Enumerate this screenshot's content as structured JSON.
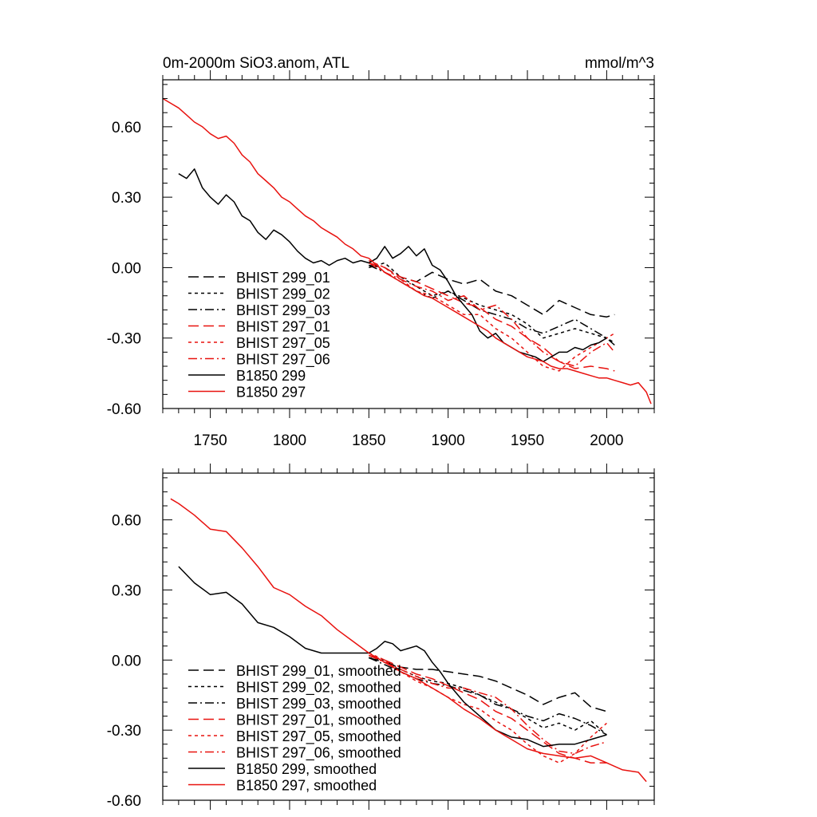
{
  "colors": {
    "black": "#000000",
    "red": "#e8120f"
  },
  "chart_data": [
    {
      "type": "line",
      "title": "0m-2000m SiO3.anom, ATL",
      "units": "mmol/m^3",
      "xlim": [
        1720,
        2030
      ],
      "ylim": [
        -0.6,
        0.8
      ],
      "xticks": [
        1750,
        1800,
        1850,
        1900,
        1950,
        2000
      ],
      "yticks": [
        -0.6,
        -0.3,
        0.0,
        0.3,
        0.6
      ],
      "ytick_labels": [
        "-0.60",
        "-0.30",
        "0.00",
        "0.30",
        "0.60"
      ],
      "xtick_labels_shown": true,
      "grid": false,
      "legend_position": "lower-left",
      "series": [
        {
          "name": "BHIST 299_01",
          "color": "black",
          "dash": "long-dash",
          "smoothed": false,
          "x": [
            1850,
            1860,
            1870,
            1880,
            1890,
            1900,
            1910,
            1920,
            1930,
            1940,
            1950,
            1960,
            1970,
            1980,
            1990,
            2000,
            2005
          ],
          "y": [
            0.01,
            0.0,
            -0.04,
            -0.06,
            -0.02,
            -0.05,
            -0.07,
            -0.05,
            -0.1,
            -0.12,
            -0.16,
            -0.2,
            -0.14,
            -0.17,
            -0.2,
            -0.21,
            -0.2
          ]
        },
        {
          "name": "BHIST 299_02",
          "color": "black",
          "dash": "short-dash",
          "smoothed": false,
          "x": [
            1850,
            1860,
            1870,
            1880,
            1890,
            1900,
            1910,
            1920,
            1930,
            1940,
            1950,
            1960,
            1970,
            1980,
            1990,
            2000,
            2005
          ],
          "y": [
            0.0,
            0.02,
            -0.04,
            -0.08,
            -0.12,
            -0.1,
            -0.13,
            -0.16,
            -0.18,
            -0.2,
            -0.24,
            -0.3,
            -0.28,
            -0.26,
            -0.28,
            -0.3,
            -0.32
          ]
        },
        {
          "name": "BHIST 299_03",
          "color": "black",
          "dash": "dash-dot",
          "smoothed": false,
          "x": [
            1850,
            1860,
            1870,
            1880,
            1890,
            1900,
            1910,
            1920,
            1930,
            1940,
            1950,
            1960,
            1970,
            1980,
            1990,
            2000,
            2005
          ],
          "y": [
            0.01,
            -0.02,
            -0.06,
            -0.1,
            -0.13,
            -0.1,
            -0.14,
            -0.18,
            -0.2,
            -0.22,
            -0.26,
            -0.28,
            -0.25,
            -0.22,
            -0.26,
            -0.3,
            -0.33
          ]
        },
        {
          "name": "BHIST 297_01",
          "color": "red",
          "dash": "long-dash",
          "smoothed": false,
          "x": [
            1850,
            1860,
            1870,
            1880,
            1890,
            1900,
            1910,
            1920,
            1930,
            1940,
            1950,
            1960,
            1970,
            1980,
            1990,
            2000,
            2005
          ],
          "y": [
            0.02,
            0.0,
            -0.04,
            -0.06,
            -0.09,
            -0.12,
            -0.15,
            -0.17,
            -0.22,
            -0.25,
            -0.3,
            -0.34,
            -0.4,
            -0.43,
            -0.42,
            -0.43,
            -0.44
          ]
        },
        {
          "name": "BHIST 297_05",
          "color": "red",
          "dash": "short-dash",
          "smoothed": false,
          "x": [
            1850,
            1860,
            1870,
            1880,
            1890,
            1900,
            1910,
            1920,
            1930,
            1940,
            1950,
            1960,
            1970,
            1980,
            1990,
            2000,
            2005
          ],
          "y": [
            0.03,
            0.0,
            -0.05,
            -0.1,
            -0.12,
            -0.16,
            -0.2,
            -0.2,
            -0.26,
            -0.3,
            -0.36,
            -0.42,
            -0.44,
            -0.38,
            -0.34,
            -0.3,
            -0.28
          ]
        },
        {
          "name": "BHIST 297_06",
          "color": "red",
          "dash": "dash-dot",
          "smoothed": false,
          "x": [
            1850,
            1860,
            1870,
            1880,
            1890,
            1900,
            1910,
            1920,
            1930,
            1940,
            1950,
            1960,
            1970,
            1980,
            1990,
            2000,
            2005
          ],
          "y": [
            0.02,
            -0.02,
            -0.05,
            -0.08,
            -0.1,
            -0.14,
            -0.12,
            -0.18,
            -0.16,
            -0.22,
            -0.3,
            -0.36,
            -0.4,
            -0.42,
            -0.36,
            -0.32,
            -0.36
          ]
        },
        {
          "name": "B1850 299",
          "color": "black",
          "dash": "solid",
          "smoothed": false,
          "x": [
            1730,
            1735,
            1740,
            1745,
            1750,
            1755,
            1760,
            1765,
            1770,
            1775,
            1780,
            1785,
            1790,
            1795,
            1800,
            1805,
            1810,
            1815,
            1820,
            1825,
            1830,
            1835,
            1840,
            1845,
            1850,
            1855,
            1860,
            1865,
            1870,
            1875,
            1880,
            1885,
            1890,
            1895,
            1900,
            1905,
            1910,
            1915,
            1920,
            1925,
            1930,
            1935,
            1940,
            1945,
            1950,
            1955,
            1960,
            1965,
            1970,
            1975,
            1980,
            1985,
            1990,
            1995,
            2000
          ],
          "y": [
            0.4,
            0.38,
            0.42,
            0.34,
            0.3,
            0.27,
            0.31,
            0.28,
            0.22,
            0.2,
            0.15,
            0.12,
            0.16,
            0.14,
            0.11,
            0.07,
            0.04,
            0.02,
            0.03,
            0.01,
            0.03,
            0.04,
            0.02,
            0.03,
            0.02,
            0.04,
            0.09,
            0.04,
            0.06,
            0.09,
            0.05,
            0.08,
            0.01,
            -0.01,
            -0.06,
            -0.12,
            -0.16,
            -0.2,
            -0.27,
            -0.3,
            -0.28,
            -0.32,
            -0.34,
            -0.36,
            -0.37,
            -0.38,
            -0.4,
            -0.38,
            -0.36,
            -0.36,
            -0.34,
            -0.35,
            -0.33,
            -0.32,
            -0.3
          ]
        },
        {
          "name": "B1850 297",
          "color": "red",
          "dash": "solid",
          "smoothed": false,
          "x": [
            1720,
            1725,
            1730,
            1735,
            1740,
            1745,
            1750,
            1755,
            1760,
            1765,
            1770,
            1775,
            1780,
            1785,
            1790,
            1795,
            1800,
            1805,
            1810,
            1815,
            1820,
            1825,
            1830,
            1835,
            1840,
            1845,
            1850,
            1855,
            1860,
            1865,
            1870,
            1875,
            1880,
            1885,
            1890,
            1895,
            1900,
            1905,
            1910,
            1915,
            1920,
            1925,
            1930,
            1935,
            1940,
            1945,
            1950,
            1955,
            1960,
            1965,
            1970,
            1975,
            1980,
            1985,
            1990,
            1995,
            2000,
            2005,
            2010,
            2015,
            2020,
            2025,
            2028
          ],
          "y": [
            0.72,
            0.7,
            0.68,
            0.65,
            0.62,
            0.6,
            0.57,
            0.55,
            0.56,
            0.53,
            0.48,
            0.45,
            0.4,
            0.37,
            0.34,
            0.3,
            0.28,
            0.25,
            0.22,
            0.2,
            0.17,
            0.15,
            0.13,
            0.1,
            0.08,
            0.05,
            0.04,
            0.01,
            -0.02,
            -0.04,
            -0.06,
            -0.08,
            -0.1,
            -0.12,
            -0.13,
            -0.15,
            -0.17,
            -0.19,
            -0.21,
            -0.23,
            -0.25,
            -0.27,
            -0.3,
            -0.32,
            -0.34,
            -0.36,
            -0.38,
            -0.39,
            -0.4,
            -0.42,
            -0.43,
            -0.43,
            -0.44,
            -0.45,
            -0.46,
            -0.47,
            -0.47,
            -0.48,
            -0.49,
            -0.5,
            -0.49,
            -0.53,
            -0.58
          ]
        }
      ]
    },
    {
      "type": "line",
      "title": "",
      "units": "",
      "xlim": [
        1720,
        2030
      ],
      "ylim": [
        -0.6,
        0.8
      ],
      "xticks": [
        1750,
        1800,
        1850,
        1900,
        1950,
        2000
      ],
      "yticks": [
        -0.6,
        -0.3,
        0.0,
        0.3,
        0.6
      ],
      "ytick_labels": [
        "-0.60",
        "-0.30",
        "0.00",
        "0.30",
        "0.60"
      ],
      "xtick_labels_shown": false,
      "grid": false,
      "legend_position": "lower-left",
      "series": [
        {
          "name": "BHIST 299_01, smoothed",
          "color": "black",
          "dash": "long-dash",
          "smoothed": true,
          "x": [
            1850,
            1860,
            1870,
            1880,
            1890,
            1900,
            1910,
            1920,
            1930,
            1940,
            1950,
            1960,
            1970,
            1980,
            1990,
            2000
          ],
          "y": [
            0.01,
            -0.01,
            -0.03,
            -0.04,
            -0.04,
            -0.05,
            -0.06,
            -0.07,
            -0.09,
            -0.12,
            -0.15,
            -0.19,
            -0.16,
            -0.14,
            -0.2,
            -0.22
          ]
        },
        {
          "name": "BHIST 299_02, smoothed",
          "color": "black",
          "dash": "short-dash",
          "smoothed": true,
          "x": [
            1850,
            1860,
            1870,
            1880,
            1890,
            1900,
            1910,
            1920,
            1930,
            1940,
            1950,
            1960,
            1970,
            1980,
            1990,
            2000
          ],
          "y": [
            0.01,
            0.0,
            -0.04,
            -0.07,
            -0.09,
            -0.1,
            -0.12,
            -0.15,
            -0.18,
            -0.21,
            -0.25,
            -0.29,
            -0.27,
            -0.3,
            -0.26,
            -0.32
          ]
        },
        {
          "name": "BHIST 299_03, smoothed",
          "color": "black",
          "dash": "dash-dot",
          "smoothed": true,
          "x": [
            1850,
            1860,
            1870,
            1880,
            1890,
            1900,
            1910,
            1920,
            1930,
            1940,
            1950,
            1960,
            1970,
            1980,
            1990,
            2000
          ],
          "y": [
            0.01,
            -0.02,
            -0.05,
            -0.08,
            -0.1,
            -0.11,
            -0.13,
            -0.15,
            -0.19,
            -0.21,
            -0.24,
            -0.26,
            -0.23,
            -0.25,
            -0.28,
            -0.32
          ]
        },
        {
          "name": "BHIST 297_01, smoothed",
          "color": "red",
          "dash": "long-dash",
          "smoothed": true,
          "x": [
            1850,
            1860,
            1870,
            1880,
            1890,
            1900,
            1910,
            1920,
            1930,
            1940,
            1950,
            1960,
            1970,
            1980,
            1990,
            2000
          ],
          "y": [
            0.02,
            0.0,
            -0.03,
            -0.06,
            -0.08,
            -0.11,
            -0.14,
            -0.17,
            -0.22,
            -0.25,
            -0.3,
            -0.35,
            -0.4,
            -0.42,
            -0.44,
            -0.44
          ]
        },
        {
          "name": "BHIST 297_05, smoothed",
          "color": "red",
          "dash": "short-dash",
          "smoothed": true,
          "x": [
            1850,
            1860,
            1870,
            1880,
            1890,
            1900,
            1910,
            1920,
            1930,
            1940,
            1950,
            1960,
            1970,
            1980,
            1990,
            2000
          ],
          "y": [
            0.03,
            0.0,
            -0.05,
            -0.09,
            -0.12,
            -0.16,
            -0.19,
            -0.21,
            -0.26,
            -0.3,
            -0.36,
            -0.41,
            -0.44,
            -0.4,
            -0.33,
            -0.27
          ]
        },
        {
          "name": "BHIST 297_06, smoothed",
          "color": "red",
          "dash": "dash-dot",
          "smoothed": true,
          "x": [
            1850,
            1860,
            1870,
            1880,
            1890,
            1900,
            1910,
            1920,
            1930,
            1940,
            1950,
            1960,
            1970,
            1980,
            1990,
            2000
          ],
          "y": [
            0.02,
            -0.01,
            -0.04,
            -0.07,
            -0.1,
            -0.12,
            -0.12,
            -0.14,
            -0.16,
            -0.21,
            -0.28,
            -0.34,
            -0.39,
            -0.4,
            -0.37,
            -0.35
          ]
        },
        {
          "name": "B1850 299, smoothed",
          "color": "black",
          "dash": "solid",
          "smoothed": true,
          "x": [
            1730,
            1740,
            1750,
            1760,
            1770,
            1780,
            1790,
            1800,
            1810,
            1820,
            1830,
            1840,
            1850,
            1855,
            1860,
            1865,
            1870,
            1875,
            1880,
            1885,
            1890,
            1895,
            1900,
            1910,
            1920,
            1930,
            1940,
            1950,
            1960,
            1970,
            1980,
            1990,
            2000
          ],
          "y": [
            0.4,
            0.33,
            0.28,
            0.29,
            0.24,
            0.16,
            0.14,
            0.1,
            0.05,
            0.03,
            0.03,
            0.03,
            0.03,
            0.05,
            0.08,
            0.07,
            0.04,
            0.05,
            0.06,
            0.04,
            -0.01,
            -0.05,
            -0.1,
            -0.18,
            -0.24,
            -0.3,
            -0.33,
            -0.34,
            -0.37,
            -0.36,
            -0.36,
            -0.34,
            -0.32
          ]
        },
        {
          "name": "B1850 297, smoothed",
          "color": "red",
          "dash": "solid",
          "smoothed": true,
          "x": [
            1725,
            1730,
            1740,
            1750,
            1760,
            1770,
            1780,
            1790,
            1800,
            1810,
            1820,
            1830,
            1840,
            1850,
            1860,
            1870,
            1880,
            1890,
            1900,
            1910,
            1920,
            1930,
            1940,
            1950,
            1960,
            1970,
            1980,
            1990,
            2000,
            2010,
            2020,
            2025
          ],
          "y": [
            0.69,
            0.67,
            0.62,
            0.56,
            0.55,
            0.48,
            0.4,
            0.31,
            0.28,
            0.23,
            0.19,
            0.13,
            0.08,
            0.03,
            -0.01,
            -0.05,
            -0.08,
            -0.12,
            -0.16,
            -0.21,
            -0.25,
            -0.3,
            -0.34,
            -0.38,
            -0.4,
            -0.41,
            -0.42,
            -0.41,
            -0.44,
            -0.47,
            -0.48,
            -0.52
          ]
        }
      ]
    }
  ]
}
